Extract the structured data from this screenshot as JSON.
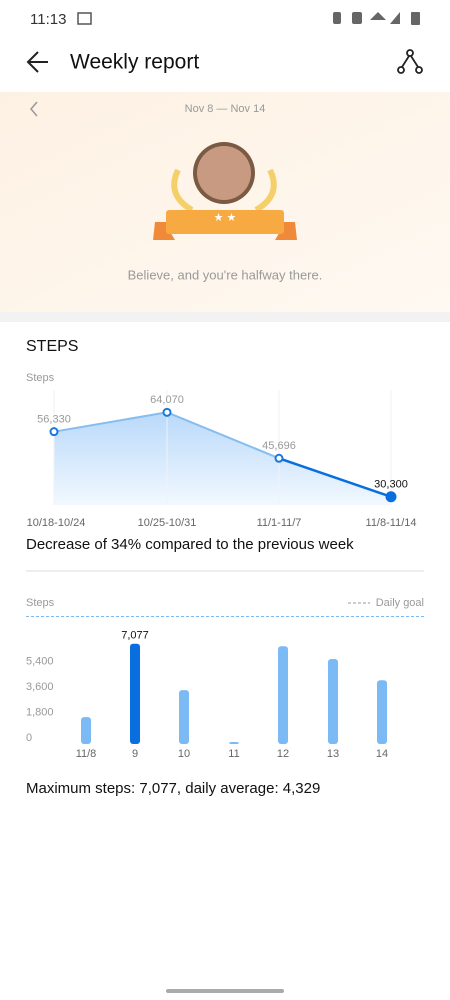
{
  "status": {
    "time": "11:13"
  },
  "header": {
    "title": "Weekly report"
  },
  "banner": {
    "date_range": "Nov 8 — Nov 14",
    "quote": "Believe, and you're halfway there."
  },
  "section": {
    "title": "STEPS"
  },
  "chart_data": [
    {
      "type": "line",
      "y_label": "Steps",
      "categories": [
        "10/18-10/24",
        "10/25-10/31",
        "11/1-11/7",
        "11/8-11/14"
      ],
      "values": [
        56330,
        64070,
        45696,
        30300
      ],
      "value_labels": [
        "56,330",
        "64,070",
        "45,696",
        "30,300"
      ],
      "color": "#86bdf0",
      "highlight_color": "#0a6fde",
      "ylim": [
        27000,
        71000
      ]
    },
    {
      "type": "bar",
      "y_label": "Steps",
      "legend": "Daily goal",
      "goal": 9000,
      "categories": [
        "11/8",
        "9",
        "10",
        "11",
        "12",
        "13",
        "14"
      ],
      "values": [
        1900,
        7077,
        3800,
        140,
        6900,
        6000,
        4500
      ],
      "value_labels": [
        null,
        "7,077",
        null,
        null,
        null,
        null,
        null
      ],
      "color": "#7cbaf6",
      "highlight_color": "#0a6fde",
      "ylim": [
        0,
        9600
      ],
      "yticks": [
        0,
        {
          "value": 1800,
          "label": "1,800"
        },
        {
          "value": 3600,
          "label": "3,600"
        },
        {
          "value": 5400,
          "label": "5,400"
        }
      ],
      "grid": false
    }
  ],
  "summary": {
    "change": "Decrease of 34% compared to the previous week",
    "footer": "Maximum steps: 7,077, daily average: 4,329"
  }
}
